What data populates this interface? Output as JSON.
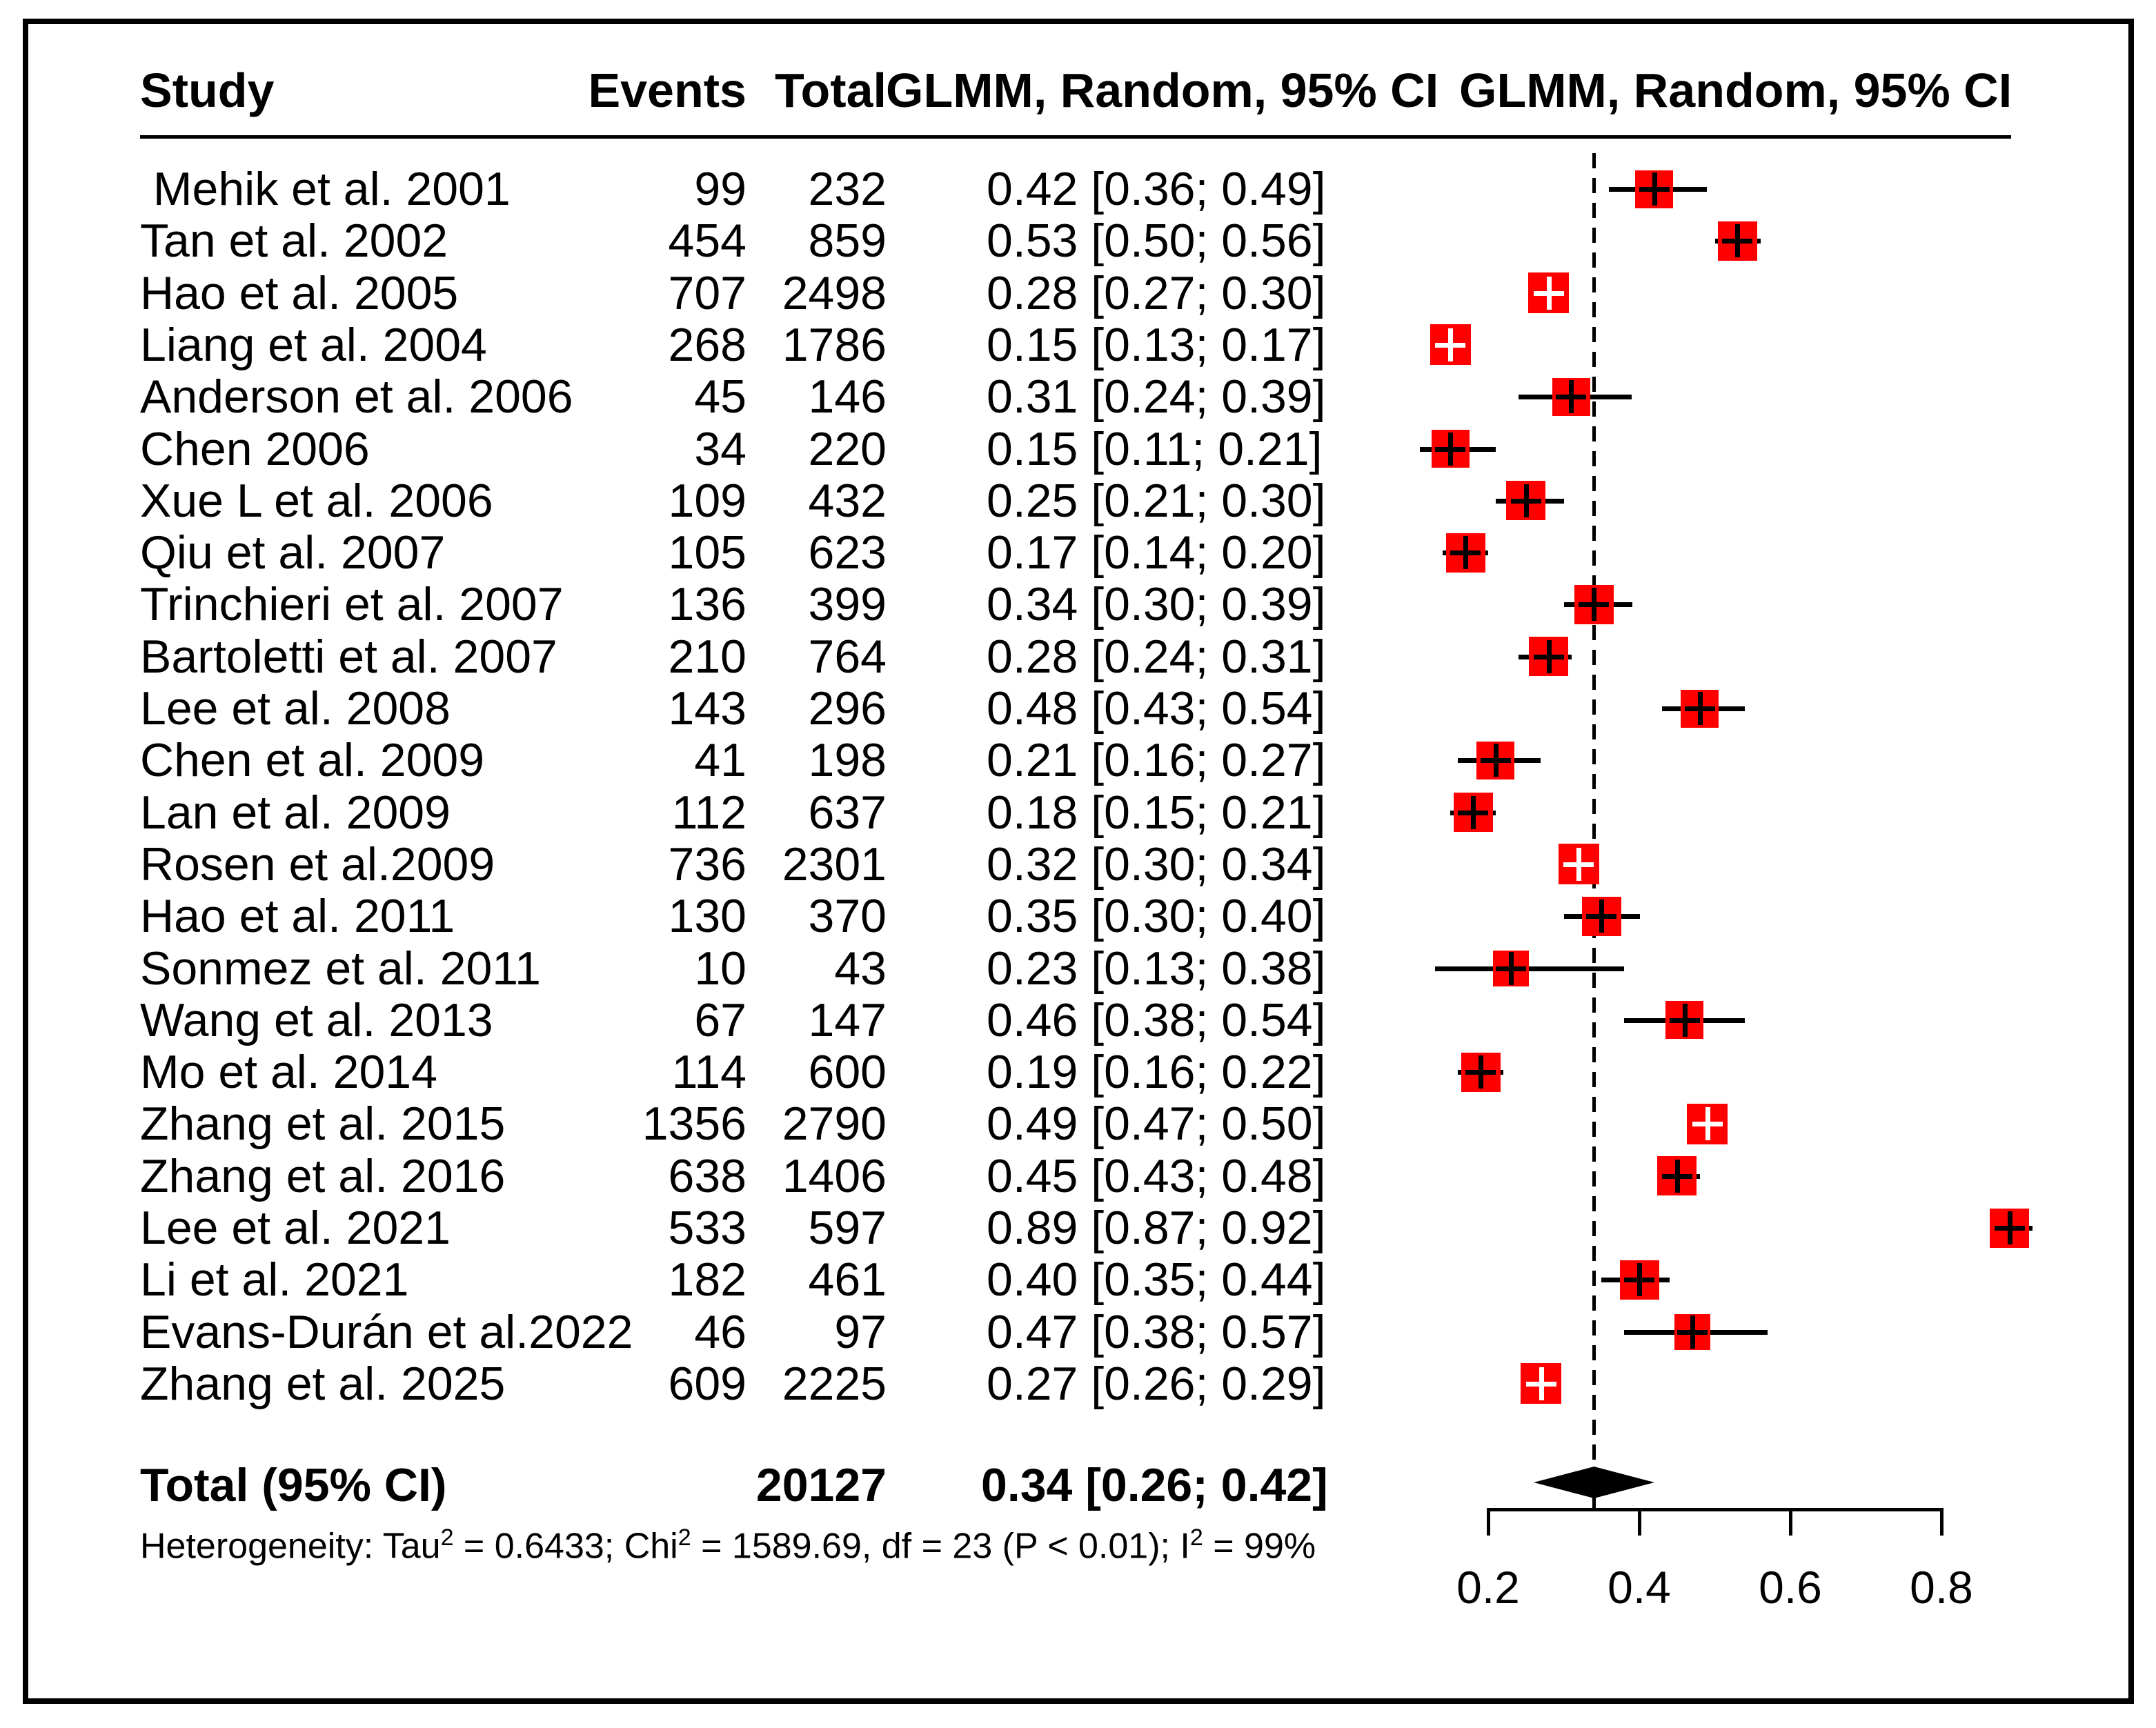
{
  "header": {
    "study": "Study",
    "events": "Events",
    "total": "Total",
    "ci_col": "GLMM, Random, 95% CI",
    "forest_col": "GLMM, Random, 95% CI"
  },
  "rows": [
    {
      "study": " Mehik et al. 2001",
      "events": "99",
      "total": "232",
      "ci_text": "0.42 [0.36; 0.49]",
      "est": 0.42,
      "lo": 0.36,
      "hi": 0.49,
      "n": 232
    },
    {
      "study": "Tan et al. 2002",
      "events": "454",
      "total": "859",
      "ci_text": "0.53 [0.50; 0.56]",
      "est": 0.53,
      "lo": 0.5,
      "hi": 0.56,
      "n": 859
    },
    {
      "study": "Hao et al. 2005",
      "events": "707",
      "total": "2498",
      "ci_text": "0.28 [0.27; 0.30]",
      "est": 0.28,
      "lo": 0.27,
      "hi": 0.3,
      "n": 2498
    },
    {
      "study": "Liang et al. 2004",
      "events": "268",
      "total": "1786",
      "ci_text": "0.15 [0.13; 0.17]",
      "est": 0.15,
      "lo": 0.13,
      "hi": 0.17,
      "n": 1786
    },
    {
      "study": "Anderson et al. 2006",
      "events": "45",
      "total": "146",
      "ci_text": "0.31 [0.24; 0.39]",
      "est": 0.31,
      "lo": 0.24,
      "hi": 0.39,
      "n": 146
    },
    {
      "study": "Chen 2006",
      "events": "34",
      "total": "220",
      "ci_text": "0.15 [0.11; 0.21]",
      "est": 0.15,
      "lo": 0.11,
      "hi": 0.21,
      "n": 220
    },
    {
      "study": "Xue L et al. 2006",
      "events": "109",
      "total": "432",
      "ci_text": "0.25 [0.21; 0.30]",
      "est": 0.25,
      "lo": 0.21,
      "hi": 0.3,
      "n": 432
    },
    {
      "study": "Qiu et al. 2007",
      "events": "105",
      "total": "623",
      "ci_text": "0.17 [0.14; 0.20]",
      "est": 0.17,
      "lo": 0.14,
      "hi": 0.2,
      "n": 623
    },
    {
      "study": "Trinchieri et al. 2007",
      "events": "136",
      "total": "399",
      "ci_text": "0.34 [0.30; 0.39]",
      "est": 0.34,
      "lo": 0.3,
      "hi": 0.39,
      "n": 399
    },
    {
      "study": "Bartoletti et al. 2007",
      "events": "210",
      "total": "764",
      "ci_text": "0.28 [0.24; 0.31]",
      "est": 0.28,
      "lo": 0.24,
      "hi": 0.31,
      "n": 764
    },
    {
      "study": "Lee et al. 2008",
      "events": "143",
      "total": "296",
      "ci_text": "0.48 [0.43; 0.54]",
      "est": 0.48,
      "lo": 0.43,
      "hi": 0.54,
      "n": 296
    },
    {
      "study": "Chen et al. 2009",
      "events": "41",
      "total": "198",
      "ci_text": "0.21 [0.16; 0.27]",
      "est": 0.21,
      "lo": 0.16,
      "hi": 0.27,
      "n": 198
    },
    {
      "study": "Lan et al. 2009",
      "events": "112",
      "total": "637",
      "ci_text": "0.18 [0.15; 0.21]",
      "est": 0.18,
      "lo": 0.15,
      "hi": 0.21,
      "n": 637
    },
    {
      "study": "Rosen et al.2009",
      "events": "736",
      "total": "2301",
      "ci_text": "0.32 [0.30; 0.34]",
      "est": 0.32,
      "lo": 0.3,
      "hi": 0.34,
      "n": 2301
    },
    {
      "study": "Hao et al. 2011",
      "events": "130",
      "total": "370",
      "ci_text": "0.35 [0.30; 0.40]",
      "est": 0.35,
      "lo": 0.3,
      "hi": 0.4,
      "n": 370
    },
    {
      "study": "Sonmez et al. 2011",
      "events": "10",
      "total": "43",
      "ci_text": "0.23 [0.13; 0.38]",
      "est": 0.23,
      "lo": 0.13,
      "hi": 0.38,
      "n": 43
    },
    {
      "study": "Wang et al. 2013",
      "events": "67",
      "total": "147",
      "ci_text": "0.46 [0.38; 0.54]",
      "est": 0.46,
      "lo": 0.38,
      "hi": 0.54,
      "n": 147
    },
    {
      "study": "Mo et al. 2014",
      "events": "114",
      "total": "600",
      "ci_text": "0.19 [0.16; 0.22]",
      "est": 0.19,
      "lo": 0.16,
      "hi": 0.22,
      "n": 600
    },
    {
      "study": "Zhang et al. 2015",
      "events": "1356",
      "total": "2790",
      "ci_text": "0.49 [0.47; 0.50]",
      "est": 0.49,
      "lo": 0.47,
      "hi": 0.5,
      "n": 2790
    },
    {
      "study": "Zhang et al. 2016",
      "events": "638",
      "total": "1406",
      "ci_text": "0.45 [0.43; 0.48]",
      "est": 0.45,
      "lo": 0.43,
      "hi": 0.48,
      "n": 1406
    },
    {
      "study": "Lee et al. 2021",
      "events": "533",
      "total": "597",
      "ci_text": "0.89 [0.87; 0.92]",
      "est": 0.89,
      "lo": 0.87,
      "hi": 0.92,
      "n": 597
    },
    {
      "study": "Li et al. 2021",
      "events": "182",
      "total": "461",
      "ci_text": "0.40 [0.35; 0.44]",
      "est": 0.4,
      "lo": 0.35,
      "hi": 0.44,
      "n": 461
    },
    {
      "study": "Evans-Durán et al.2022",
      "events": "46",
      "total": "97",
      "ci_text": "0.47 [0.38; 0.57]",
      "est": 0.47,
      "lo": 0.38,
      "hi": 0.57,
      "n": 97
    },
    {
      "study": "Zhang et al. 2025",
      "events": "609",
      "total": "2225",
      "ci_text": "0.27 [0.26; 0.29]",
      "est": 0.27,
      "lo": 0.26,
      "hi": 0.29,
      "n": 2225
    }
  ],
  "total_row": {
    "label": "Total (95% CI)",
    "total": "20127",
    "ci_text": "0.34 [0.26; 0.42]",
    "est": 0.34,
    "lo": 0.26,
    "hi": 0.42
  },
  "heterogeneity": {
    "t1": "Heterogeneity: Tau",
    "s1": "2",
    "t2": " = 0.6433; Chi",
    "s2": "2",
    "t3": " = 1589.69, df = 23 (P < 0.01); I",
    "s3": "2",
    "t4": " = 99%"
  },
  "axis": {
    "tick_labels": [
      "0.2",
      "0.4",
      "0.6",
      "0.8"
    ],
    "tick_values": [
      0.2,
      0.4,
      0.6,
      0.8
    ],
    "min": 0.2,
    "max": 0.8
  },
  "colors": {
    "square": "#ff0000",
    "line": "#000000",
    "pooled_line": "#000000"
  },
  "chart_data": {
    "type": "forest",
    "effect_label": "GLMM, Random, 95% CI",
    "studies": [
      "Mehik et al. 2001",
      "Tan et al. 2002",
      "Hao et al. 2005",
      "Liang et al. 2004",
      "Anderson et al. 2006",
      "Chen 2006",
      "Xue L et al. 2006",
      "Qiu et al. 2007",
      "Trinchieri et al. 2007",
      "Bartoletti et al. 2007",
      "Lee et al. 2008",
      "Chen et al. 2009",
      "Lan et al. 2009",
      "Rosen et al.2009",
      "Hao et al. 2011",
      "Sonmez et al. 2011",
      "Wang et al. 2013",
      "Mo et al. 2014",
      "Zhang et al. 2015",
      "Zhang et al. 2016",
      "Lee et al. 2021",
      "Li et al. 2021",
      "Evans-Durán et al.2022",
      "Zhang et al. 2025"
    ],
    "events": [
      99,
      454,
      707,
      268,
      45,
      34,
      109,
      105,
      136,
      210,
      143,
      41,
      112,
      736,
      130,
      10,
      67,
      114,
      1356,
      638,
      533,
      182,
      46,
      609
    ],
    "totals": [
      232,
      859,
      2498,
      1786,
      146,
      220,
      432,
      623,
      399,
      764,
      296,
      198,
      637,
      2301,
      370,
      43,
      147,
      600,
      2790,
      1406,
      597,
      461,
      97,
      2225
    ],
    "estimates": [
      0.42,
      0.53,
      0.28,
      0.15,
      0.31,
      0.15,
      0.25,
      0.17,
      0.34,
      0.28,
      0.48,
      0.21,
      0.18,
      0.32,
      0.35,
      0.23,
      0.46,
      0.19,
      0.49,
      0.45,
      0.89,
      0.4,
      0.47,
      0.27
    ],
    "ci_low": [
      0.36,
      0.5,
      0.27,
      0.13,
      0.24,
      0.11,
      0.21,
      0.14,
      0.3,
      0.24,
      0.43,
      0.16,
      0.15,
      0.3,
      0.3,
      0.13,
      0.38,
      0.16,
      0.47,
      0.43,
      0.87,
      0.35,
      0.38,
      0.26
    ],
    "ci_high": [
      0.49,
      0.56,
      0.3,
      0.17,
      0.39,
      0.21,
      0.3,
      0.2,
      0.39,
      0.31,
      0.54,
      0.27,
      0.21,
      0.34,
      0.4,
      0.38,
      0.54,
      0.22,
      0.5,
      0.48,
      0.92,
      0.44,
      0.57,
      0.29
    ],
    "pooled": {
      "total": 20127,
      "estimate": 0.34,
      "ci_low": 0.26,
      "ci_high": 0.42
    },
    "heterogeneity": {
      "tau2": 0.6433,
      "chi2": 1589.69,
      "df": 23,
      "p": "< 0.01",
      "i2": "99%"
    },
    "xlim": [
      0.2,
      0.8
    ],
    "x_ticks": [
      0.2,
      0.4,
      0.6,
      0.8
    ]
  }
}
